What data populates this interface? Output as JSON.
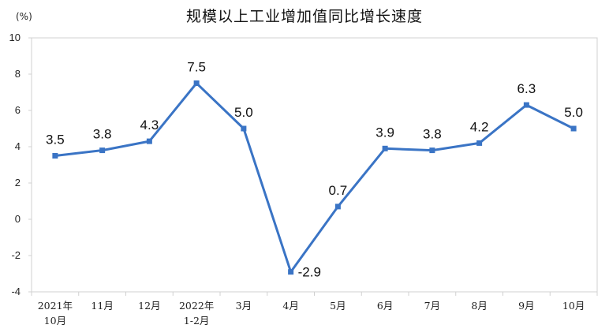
{
  "chart_data": {
    "type": "line",
    "title": "规模以上工业增加值同比增长速度",
    "unit_label": "(%)",
    "categories": [
      [
        "2021年",
        "10月"
      ],
      [
        "11月"
      ],
      [
        "12月"
      ],
      [
        "2022年",
        "1-2月"
      ],
      [
        "3月"
      ],
      [
        "4月"
      ],
      [
        "5月"
      ],
      [
        "6月"
      ],
      [
        "7月"
      ],
      [
        "8月"
      ],
      [
        "9月"
      ],
      [
        "10月"
      ]
    ],
    "values": [
      3.5,
      3.8,
      4.3,
      7.5,
      5.0,
      -2.9,
      0.7,
      3.9,
      3.8,
      4.2,
      6.3,
      5.0
    ],
    "data_labels": [
      "3.5",
      "3.8",
      "4.3",
      "7.5",
      "5.0",
      "-2.9",
      "0.7",
      "3.9",
      "3.8",
      "4.2",
      "6.3",
      "5.0"
    ],
    "y_ticks": [
      10,
      8,
      6,
      4,
      2,
      0,
      -2,
      -4
    ],
    "ylim": [
      -4,
      10
    ],
    "grid": false,
    "legend": "none",
    "line_color": "#3A74C5",
    "axis_color": "#D0D0D0"
  }
}
